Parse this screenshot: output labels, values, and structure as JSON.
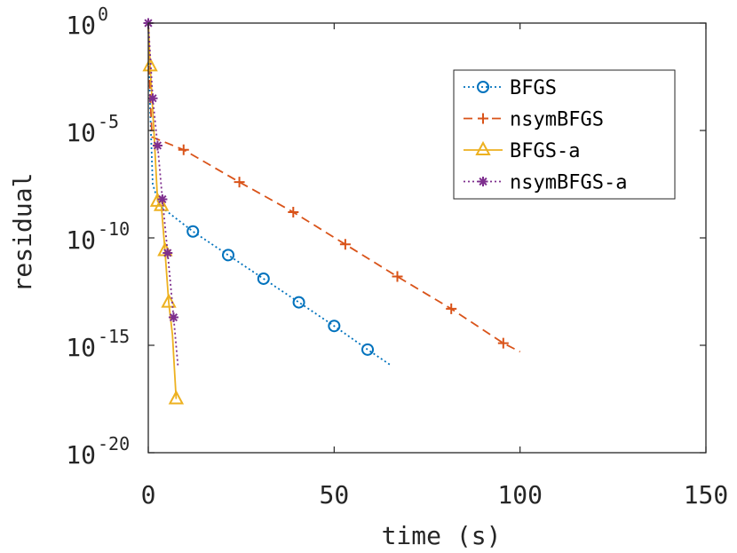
{
  "chart_data": {
    "type": "line",
    "xlabel": "time (s)",
    "ylabel": "residual",
    "xlim": [
      0,
      150
    ],
    "ylim_exponent": [
      -20,
      0
    ],
    "y_scale": "log",
    "x_ticks": [
      "0",
      "50",
      "100",
      "150"
    ],
    "y_ticks": [
      {
        "base": "10",
        "exp": "0",
        "value": 0
      },
      {
        "base": "10",
        "exp": "-5",
        "value": -5
      },
      {
        "base": "10",
        "exp": "-10",
        "value": -10
      },
      {
        "base": "10",
        "exp": "-15",
        "value": -15
      },
      {
        "base": "10",
        "exp": "-20",
        "value": -20
      }
    ],
    "grid": false,
    "legend_position": "top-right",
    "series": [
      {
        "name": "BFGS",
        "color": "#0072BD",
        "linestyle": "dotted",
        "marker": "circle",
        "x": [
          0,
          0.5,
          1.2,
          3,
          12,
          21.5,
          31,
          40.5,
          50,
          59,
          65
        ],
        "log10_y": [
          0,
          -4,
          -7.5,
          -8.5,
          -9.7,
          -10.8,
          -11.9,
          -13.0,
          -14.1,
          -15.2,
          -15.9
        ],
        "marker_indices": [
          4,
          5,
          6,
          7,
          8,
          9
        ]
      },
      {
        "name": "nsymBFGS",
        "color": "#D95319",
        "linestyle": "dashed",
        "marker": "plus",
        "x": [
          0,
          0.4,
          1.0,
          9.5,
          24.5,
          39,
          53,
          67,
          81.5,
          95.5,
          100
        ],
        "log10_y": [
          0,
          -3,
          -5.3,
          -5.9,
          -7.4,
          -8.8,
          -10.3,
          -11.8,
          -13.3,
          -14.9,
          -15.3
        ],
        "marker_indices": [
          3,
          4,
          5,
          6,
          7,
          8,
          9
        ]
      },
      {
        "name": "BFGS-a",
        "color": "#EDB120",
        "linestyle": "solid",
        "marker": "triangle",
        "x": [
          0,
          0.5,
          1.5,
          2.5,
          3.5,
          4.5,
          5.5,
          6.5,
          7.5
        ],
        "log10_y": [
          0,
          -2,
          -5,
          -8.3,
          -8.5,
          -10.6,
          -13,
          -14.5,
          -17.5
        ],
        "marker_indices": [
          1,
          3,
          4,
          5,
          6,
          8
        ]
      },
      {
        "name": "nsymBFGS-a",
        "color": "#7E2F8E",
        "linestyle": "dotted",
        "marker": "asterisk",
        "x": [
          0,
          1.2,
          2.5,
          3.8,
          5.2,
          6.8,
          8.0
        ],
        "log10_y": [
          0,
          -3.5,
          -5.7,
          -8.2,
          -10.7,
          -13.7,
          -16.0
        ],
        "marker_indices": [
          0,
          1,
          2,
          3,
          4,
          5
        ]
      }
    ]
  }
}
